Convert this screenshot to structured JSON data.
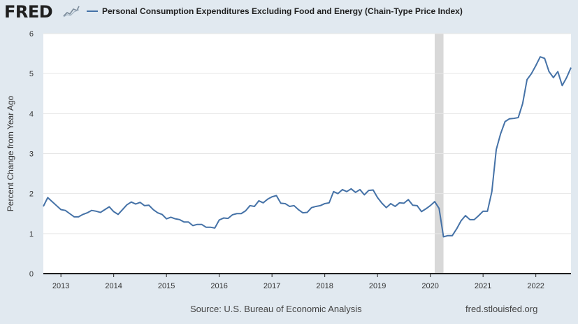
{
  "header": {
    "logo_text": "FRED",
    "logo_icon": "fred-chart-icon",
    "series_title": "Personal Consumption Expenditures Excluding Food and Energy (Chain-Type Price Index)"
  },
  "footer": {
    "source": "Source: U.S. Bureau of Economic Analysis",
    "url": "fred.stlouisfed.org"
  },
  "colors": {
    "line": "#4572a7",
    "background": "#e1e9f0",
    "plot": "#ffffff",
    "recession": "#d8d8d8"
  },
  "chart_data": {
    "type": "line",
    "title": "Personal Consumption Expenditures Excluding Food and Energy (Chain-Type Price Index)",
    "xlabel": "",
    "ylabel": "Percent Change from Year Ago",
    "ylim": [
      0,
      6
    ],
    "yticks": [
      "0",
      "1",
      "2",
      "3",
      "4",
      "5",
      "6"
    ],
    "xticks": [
      "2013",
      "2014",
      "2015",
      "2016",
      "2017",
      "2018",
      "2019",
      "2020",
      "2021",
      "2022"
    ],
    "xlim": [
      "2012-09",
      "2022-09"
    ],
    "grid": true,
    "recession": {
      "start": "2020-02",
      "end": "2020-04"
    },
    "series": [
      {
        "name": "Personal Consumption Expenditures Excluding Food and Energy (Chain-Type Price Index)",
        "x": [
          "2012-09",
          "2012-10",
          "2012-11",
          "2012-12",
          "2013-01",
          "2013-02",
          "2013-03",
          "2013-04",
          "2013-05",
          "2013-06",
          "2013-07",
          "2013-08",
          "2013-09",
          "2013-10",
          "2013-11",
          "2013-12",
          "2014-01",
          "2014-02",
          "2014-03",
          "2014-04",
          "2014-05",
          "2014-06",
          "2014-07",
          "2014-08",
          "2014-09",
          "2014-10",
          "2014-11",
          "2014-12",
          "2015-01",
          "2015-02",
          "2015-03",
          "2015-04",
          "2015-05",
          "2015-06",
          "2015-07",
          "2015-08",
          "2015-09",
          "2015-10",
          "2015-11",
          "2015-12",
          "2016-01",
          "2016-02",
          "2016-03",
          "2016-04",
          "2016-05",
          "2016-06",
          "2016-07",
          "2016-08",
          "2016-09",
          "2016-10",
          "2016-11",
          "2016-12",
          "2017-01",
          "2017-02",
          "2017-03",
          "2017-04",
          "2017-05",
          "2017-06",
          "2017-07",
          "2017-08",
          "2017-09",
          "2017-10",
          "2017-11",
          "2017-12",
          "2018-01",
          "2018-02",
          "2018-03",
          "2018-04",
          "2018-05",
          "2018-06",
          "2018-07",
          "2018-08",
          "2018-09",
          "2018-10",
          "2018-11",
          "2018-12",
          "2019-01",
          "2019-02",
          "2019-03",
          "2019-04",
          "2019-05",
          "2019-06",
          "2019-07",
          "2019-08",
          "2019-09",
          "2019-10",
          "2019-11",
          "2019-12",
          "2020-01",
          "2020-02",
          "2020-03",
          "2020-04",
          "2020-05",
          "2020-06",
          "2020-07",
          "2020-08",
          "2020-09",
          "2020-10",
          "2020-11",
          "2020-12",
          "2021-01",
          "2021-02",
          "2021-03",
          "2021-04",
          "2021-05",
          "2021-06",
          "2021-07",
          "2021-08",
          "2021-09",
          "2021-10",
          "2021-11",
          "2021-12",
          "2022-01",
          "2022-02",
          "2022-03",
          "2022-04",
          "2022-05",
          "2022-06",
          "2022-07",
          "2022-08",
          "2022-09"
        ],
        "values": [
          1.68,
          1.9,
          1.8,
          1.7,
          1.6,
          1.58,
          1.5,
          1.42,
          1.42,
          1.48,
          1.52,
          1.58,
          1.56,
          1.53,
          1.6,
          1.67,
          1.55,
          1.48,
          1.6,
          1.72,
          1.79,
          1.74,
          1.78,
          1.7,
          1.71,
          1.6,
          1.52,
          1.48,
          1.37,
          1.41,
          1.37,
          1.35,
          1.29,
          1.29,
          1.2,
          1.23,
          1.23,
          1.16,
          1.16,
          1.14,
          1.34,
          1.39,
          1.38,
          1.47,
          1.5,
          1.5,
          1.57,
          1.7,
          1.68,
          1.82,
          1.77,
          1.86,
          1.92,
          1.95,
          1.76,
          1.75,
          1.68,
          1.7,
          1.6,
          1.52,
          1.53,
          1.65,
          1.68,
          1.7,
          1.75,
          1.77,
          2.05,
          2.0,
          2.1,
          2.05,
          2.12,
          2.03,
          2.1,
          1.97,
          2.08,
          2.09,
          1.9,
          1.76,
          1.65,
          1.75,
          1.68,
          1.77,
          1.76,
          1.85,
          1.71,
          1.7,
          1.55,
          1.62,
          1.7,
          1.8,
          1.63,
          0.92,
          0.95,
          0.95,
          1.12,
          1.32,
          1.45,
          1.35,
          1.35,
          1.45,
          1.56,
          1.56,
          2.05,
          3.1,
          3.5,
          3.8,
          3.87,
          3.88,
          3.9,
          4.25,
          4.85,
          5.0,
          5.2,
          5.42,
          5.38,
          5.05,
          4.9,
          5.05,
          4.7,
          4.9,
          5.15
        ]
      }
    ]
  }
}
